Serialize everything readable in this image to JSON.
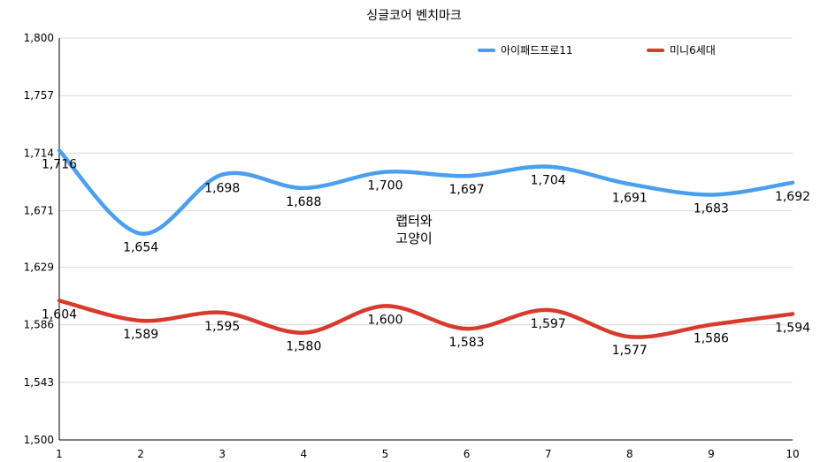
{
  "chart_data": {
    "type": "line",
    "title": "싱글코어 벤치마크",
    "x": [
      1,
      2,
      3,
      4,
      5,
      6,
      7,
      8,
      9,
      10
    ],
    "x_tick_labels": [
      "1",
      "2",
      "3",
      "4",
      "5",
      "6",
      "7",
      "8",
      "9",
      "10"
    ],
    "ylim": [
      1500,
      1800
    ],
    "y_tick_values": [
      1500,
      1543,
      1586,
      1629,
      1671,
      1714,
      1757,
      1800
    ],
    "y_tick_labels": [
      "1,500",
      "1,543",
      "1,586",
      "1,629",
      "1,671",
      "1,714",
      "1,757",
      "1,800"
    ],
    "grid": true,
    "smooth": true,
    "legend": "top-right",
    "series": [
      {
        "name": "아이패드프로11",
        "color": "#4a9ff0",
        "values": [
          1716,
          1654,
          1698,
          1688,
          1700,
          1697,
          1704,
          1691,
          1683,
          1692
        ],
        "labels": [
          "1,716",
          "1,654",
          "1,698",
          "1,688",
          "1,700",
          "1,697",
          "1,704",
          "1,691",
          "1,683",
          "1,692"
        ]
      },
      {
        "name": "미니6세대",
        "color": "#d83a2b",
        "values": [
          1604,
          1589,
          1595,
          1580,
          1600,
          1583,
          1597,
          1577,
          1586,
          1594
        ],
        "labels": [
          "1,604",
          "1,589",
          "1,595",
          "1,580",
          "1,600",
          "1,583",
          "1,597",
          "1,577",
          "1,586",
          "1,594"
        ]
      }
    ],
    "watermark": [
      "랩터와",
      "고양이"
    ]
  }
}
